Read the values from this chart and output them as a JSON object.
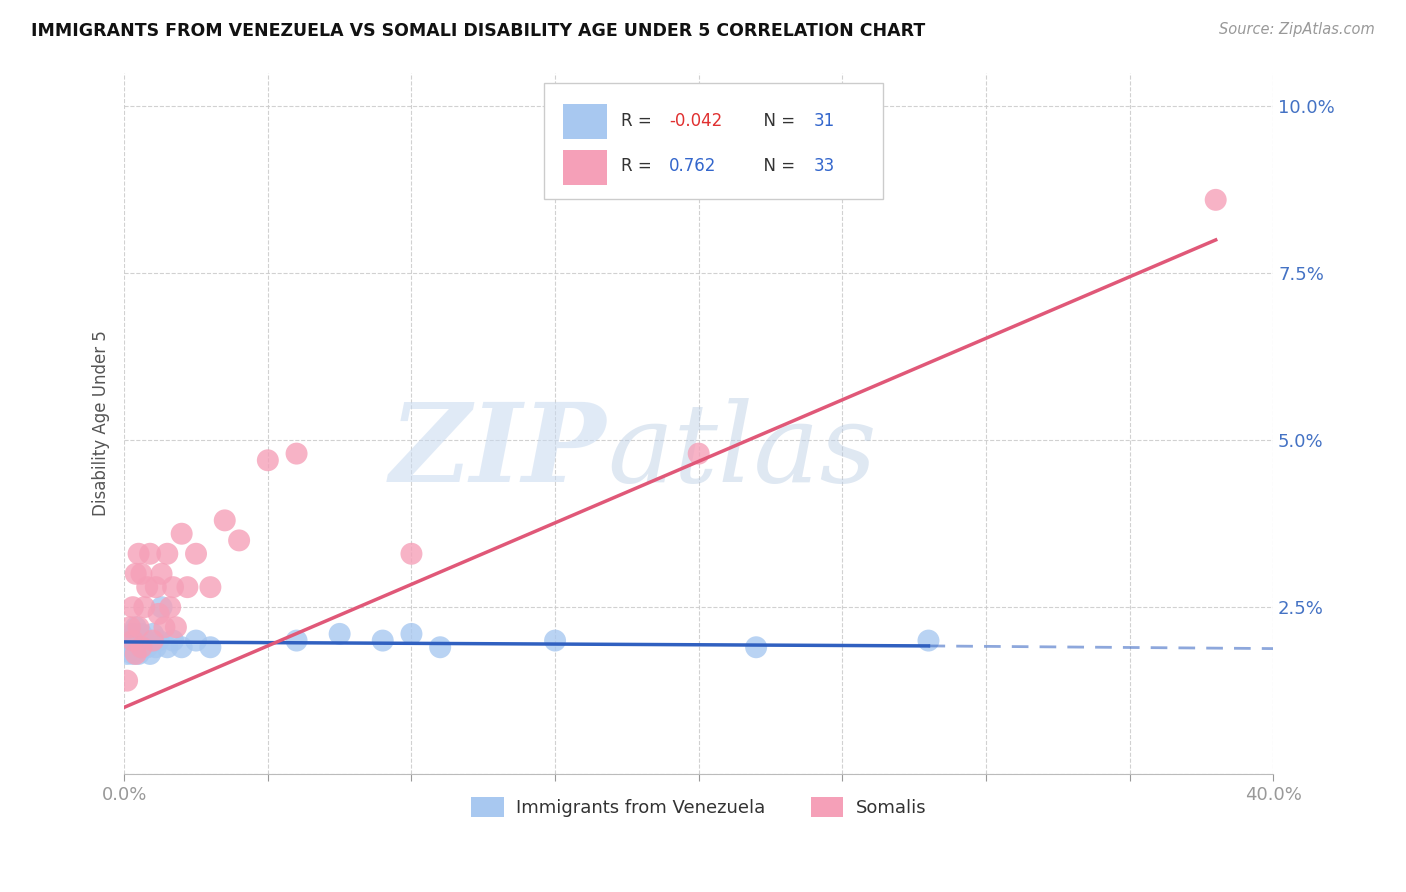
{
  "title": "IMMIGRANTS FROM VENEZUELA VS SOMALI DISABILITY AGE UNDER 5 CORRELATION CHART",
  "source": "Source: ZipAtlas.com",
  "ylabel": "Disability Age Under 5",
  "xlim": [
    0.0,
    0.4
  ],
  "ylim": [
    0.0,
    0.105
  ],
  "xticks": [
    0.0,
    0.05,
    0.1,
    0.15,
    0.2,
    0.25,
    0.3,
    0.35,
    0.4
  ],
  "yticks": [
    0.0,
    0.025,
    0.05,
    0.075,
    0.1
  ],
  "ytick_labels": [
    "",
    "2.5%",
    "5.0%",
    "7.5%",
    "10.0%"
  ],
  "xtick_labels": [
    "0.0%",
    "",
    "",
    "",
    "",
    "",
    "",
    "",
    "40.0%"
  ],
  "legend_R1": "-0.042",
  "legend_N1": "31",
  "legend_R2": "0.762",
  "legend_N2": "33",
  "color_venezuela": "#a8c8f0",
  "color_somali": "#f5a0b8",
  "color_venezuela_line": "#3060c0",
  "color_somali_line": "#e05878",
  "venezuela_x": [
    0.001,
    0.002,
    0.002,
    0.003,
    0.003,
    0.004,
    0.004,
    0.005,
    0.005,
    0.006,
    0.006,
    0.007,
    0.008,
    0.009,
    0.01,
    0.011,
    0.012,
    0.013,
    0.015,
    0.017,
    0.02,
    0.025,
    0.03,
    0.06,
    0.075,
    0.09,
    0.1,
    0.11,
    0.15,
    0.22,
    0.28
  ],
  "venezuela_y": [
    0.018,
    0.019,
    0.02,
    0.018,
    0.021,
    0.019,
    0.022,
    0.018,
    0.02,
    0.019,
    0.021,
    0.02,
    0.019,
    0.018,
    0.021,
    0.019,
    0.02,
    0.025,
    0.019,
    0.02,
    0.019,
    0.02,
    0.019,
    0.02,
    0.021,
    0.02,
    0.021,
    0.019,
    0.02,
    0.019,
    0.02
  ],
  "somali_x": [
    0.001,
    0.002,
    0.003,
    0.003,
    0.004,
    0.004,
    0.005,
    0.005,
    0.006,
    0.006,
    0.007,
    0.008,
    0.009,
    0.01,
    0.011,
    0.012,
    0.013,
    0.014,
    0.015,
    0.016,
    0.017,
    0.018,
    0.02,
    0.022,
    0.025,
    0.03,
    0.035,
    0.04,
    0.05,
    0.06,
    0.1,
    0.2,
    0.38
  ],
  "somali_y": [
    0.014,
    0.022,
    0.02,
    0.025,
    0.018,
    0.03,
    0.022,
    0.033,
    0.019,
    0.03,
    0.025,
    0.028,
    0.033,
    0.02,
    0.028,
    0.024,
    0.03,
    0.022,
    0.033,
    0.025,
    0.028,
    0.022,
    0.036,
    0.028,
    0.033,
    0.028,
    0.038,
    0.035,
    0.047,
    0.048,
    0.033,
    0.048,
    0.086
  ],
  "ven_line_x0": 0.0,
  "ven_line_x1": 0.28,
  "ven_line_x_dash_end": 0.4,
  "ven_line_y0": 0.0198,
  "ven_line_y1": 0.0192,
  "ven_line_y_dash_end": 0.0188,
  "som_line_x0": 0.0,
  "som_line_x1": 0.38,
  "som_line_y0": 0.01,
  "som_line_y1": 0.08
}
